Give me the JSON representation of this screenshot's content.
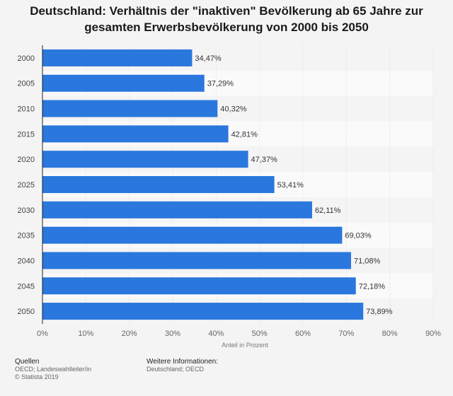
{
  "chart_data": {
    "type": "bar",
    "orientation": "horizontal",
    "title": "Deutschland: Verhältnis der \"inaktiven\" Bevölkerung ab 65 Jahre zur gesamten Erwerbsbevölkerung von 2000 bis 2050",
    "xlabel": "Anteil in Prozent",
    "ylabel": "",
    "categories": [
      "2000",
      "2005",
      "2010",
      "2015",
      "2020",
      "2025",
      "2030",
      "2035",
      "2040",
      "2045",
      "2050"
    ],
    "values": [
      34.47,
      37.29,
      40.32,
      42.81,
      47.37,
      53.41,
      62.11,
      69.03,
      71.08,
      72.18,
      73.89
    ],
    "value_labels": [
      "34,47%",
      "37,29%",
      "40,32%",
      "42,81%",
      "47,37%",
      "53,41%",
      "62,11%",
      "69,03%",
      "71,08%",
      "72,18%",
      "73,89%"
    ],
    "xlim": [
      0,
      90
    ],
    "xticks": [
      0,
      10,
      20,
      30,
      40,
      50,
      60,
      70,
      80,
      90
    ],
    "xtick_labels": [
      "0%",
      "10%",
      "20%",
      "30%",
      "40%",
      "50%",
      "60%",
      "70%",
      "80%",
      "90%"
    ],
    "grid": true,
    "legend": "none",
    "bar_color": "#2a77dd"
  },
  "footer": {
    "sources_heading": "Quellen",
    "sources_line": "OECD; Landeswahlleiter/in",
    "copyright": "© Statista 2019",
    "info_heading": "Weitere Informationen:",
    "info_line": "Deutschland; OECD"
  }
}
